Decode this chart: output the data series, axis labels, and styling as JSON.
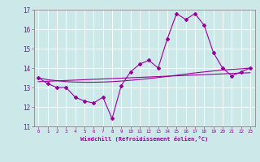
{
  "xlabel": "Windchill (Refroidissement éolien,°C)",
  "x_values": [
    0,
    1,
    2,
    3,
    4,
    5,
    6,
    7,
    8,
    9,
    10,
    11,
    12,
    13,
    14,
    15,
    16,
    17,
    18,
    19,
    20,
    21,
    22,
    23
  ],
  "y_main": [
    13.5,
    13.2,
    13.0,
    13.0,
    12.5,
    12.3,
    12.2,
    12.5,
    11.4,
    13.1,
    13.8,
    14.2,
    14.4,
    14.0,
    15.5,
    16.8,
    16.5,
    16.8,
    16.2,
    14.8,
    14.0,
    13.6,
    13.8,
    14.0
  ],
  "y_reg1": [
    13.5,
    13.4,
    13.35,
    13.3,
    13.28,
    13.27,
    13.27,
    13.28,
    13.3,
    13.33,
    13.37,
    13.41,
    13.46,
    13.51,
    13.57,
    13.63,
    13.69,
    13.75,
    13.8,
    13.85,
    13.9,
    13.93,
    13.96,
    14.0
  ],
  "y_reg2": [
    13.3,
    13.32,
    13.34,
    13.36,
    13.38,
    13.4,
    13.42,
    13.44,
    13.46,
    13.48,
    13.5,
    13.52,
    13.54,
    13.56,
    13.58,
    13.6,
    13.62,
    13.64,
    13.66,
    13.68,
    13.7,
    13.72,
    13.74,
    13.76
  ],
  "line_color": "#990099",
  "bg_color": "#cce8e8",
  "grid_color": "#ffffff",
  "ylim": [
    11,
    17
  ],
  "xlim": [
    -0.5,
    23.5
  ],
  "yticks": [
    11,
    12,
    13,
    14,
    15,
    16,
    17
  ]
}
